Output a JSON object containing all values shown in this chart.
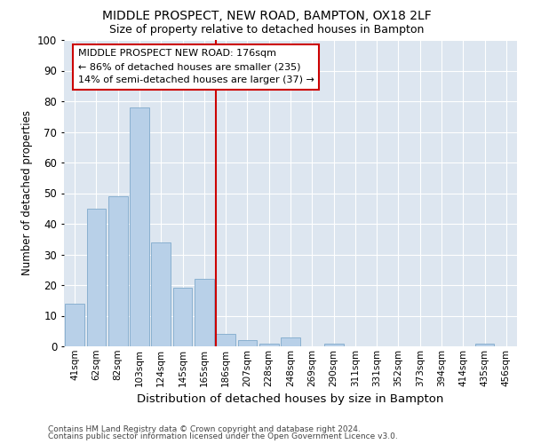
{
  "title1": "MIDDLE PROSPECT, NEW ROAD, BAMPTON, OX18 2LF",
  "title2": "Size of property relative to detached houses in Bampton",
  "xlabel": "Distribution of detached houses by size in Bampton",
  "ylabel": "Number of detached properties",
  "categories": [
    "41sqm",
    "62sqm",
    "82sqm",
    "103sqm",
    "124sqm",
    "145sqm",
    "165sqm",
    "186sqm",
    "207sqm",
    "228sqm",
    "248sqm",
    "269sqm",
    "290sqm",
    "311sqm",
    "331sqm",
    "352sqm",
    "373sqm",
    "394sqm",
    "414sqm",
    "435sqm",
    "456sqm"
  ],
  "values": [
    14,
    45,
    49,
    78,
    34,
    19,
    22,
    4,
    2,
    1,
    3,
    0,
    1,
    0,
    0,
    0,
    0,
    0,
    0,
    1,
    0
  ],
  "bar_color": "#b8d0e8",
  "bar_edge_color": "#8ab0d0",
  "marker_line_color": "#cc0000",
  "annotation_box_color": "#cc0000",
  "annotation_line1": "MIDDLE PROSPECT NEW ROAD: 176sqm",
  "annotation_line2": "← 86% of detached houses are smaller (235)",
  "annotation_line3": "14% of semi-detached houses are larger (37) →",
  "bg_color": "#dde6f0",
  "ylim": [
    0,
    100
  ],
  "grid_color": "#ffffff",
  "footer1": "Contains HM Land Registry data © Crown copyright and database right 2024.",
  "footer2": "Contains public sector information licensed under the Open Government Licence v3.0."
}
